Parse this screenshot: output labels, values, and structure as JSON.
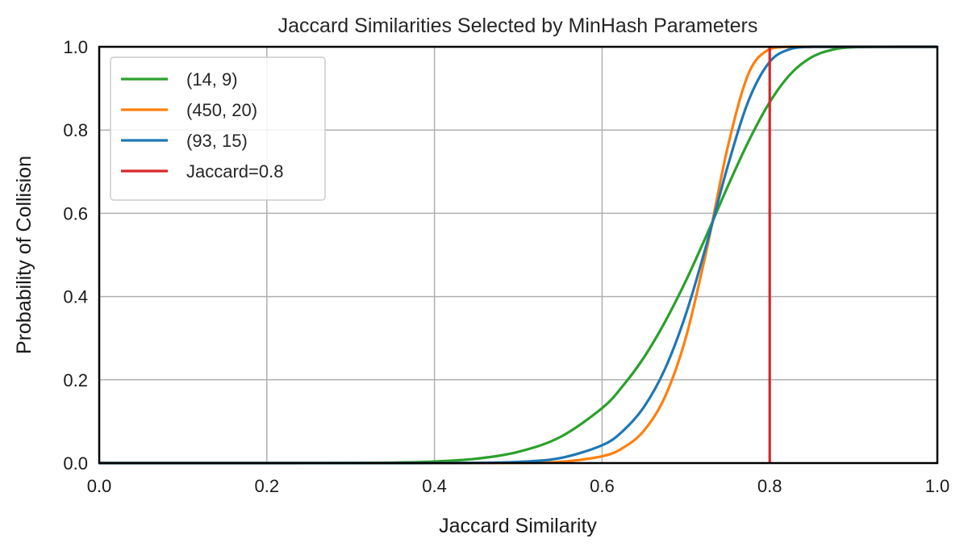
{
  "chart_data": {
    "type": "line",
    "title": "Jaccard Similarities Selected by MinHash Parameters",
    "xlabel": "Jaccard Similarity",
    "ylabel": "Probability of Collision",
    "xlim": [
      0,
      1
    ],
    "ylim": [
      0,
      1
    ],
    "xticks": [
      "0.0",
      "0.2",
      "0.4",
      "0.6",
      "0.8",
      "1.0"
    ],
    "yticks": [
      "0.0",
      "0.2",
      "0.4",
      "0.6",
      "0.8",
      "1.0"
    ],
    "grid": true,
    "legend_position": "top-left",
    "x": [
      0,
      0.1,
      0.2,
      0.3,
      0.35,
      0.4,
      0.45,
      0.5,
      0.55,
      0.6,
      0.625,
      0.65,
      0.675,
      0.7,
      0.725,
      0.75,
      0.775,
      0.8,
      0.825,
      0.85,
      0.875,
      0.9,
      0.95,
      1.0
    ],
    "series": [
      {
        "name": "(14, 9)",
        "color": "#2ca02c",
        "values": [
          0,
          0,
          0,
          0.0003,
          0.0011,
          0.0037,
          0.0105,
          0.027,
          0.0625,
          0.132,
          0.186,
          0.254,
          0.339,
          0.438,
          0.549,
          0.665,
          0.774,
          0.867,
          0.935,
          0.975,
          0.993,
          0.999,
          1.0,
          1.0
        ]
      },
      {
        "name": "(450, 20)",
        "color": "#ff7f0e",
        "values": [
          0,
          0,
          0,
          0,
          0,
          0,
          0.0001,
          0.0004,
          0.0029,
          0.0163,
          0.0365,
          0.078,
          0.159,
          0.302,
          0.515,
          0.76,
          0.937,
          0.995,
          1.0,
          1.0,
          1.0,
          1.0,
          1.0,
          1.0
        ]
      },
      {
        "name": "(93, 15)",
        "color": "#1f77b4",
        "values": [
          0,
          0,
          0,
          0,
          0,
          0.0001,
          0.0006,
          0.0028,
          0.0119,
          0.0428,
          0.0775,
          0.135,
          0.226,
          0.358,
          0.528,
          0.714,
          0.872,
          0.964,
          0.995,
          1.0,
          1.0,
          1.0,
          1.0,
          1.0
        ]
      }
    ],
    "vlines": [
      {
        "name": "Jaccard=0.8",
        "x": 0.8,
        "color": "#d62728"
      }
    ]
  }
}
